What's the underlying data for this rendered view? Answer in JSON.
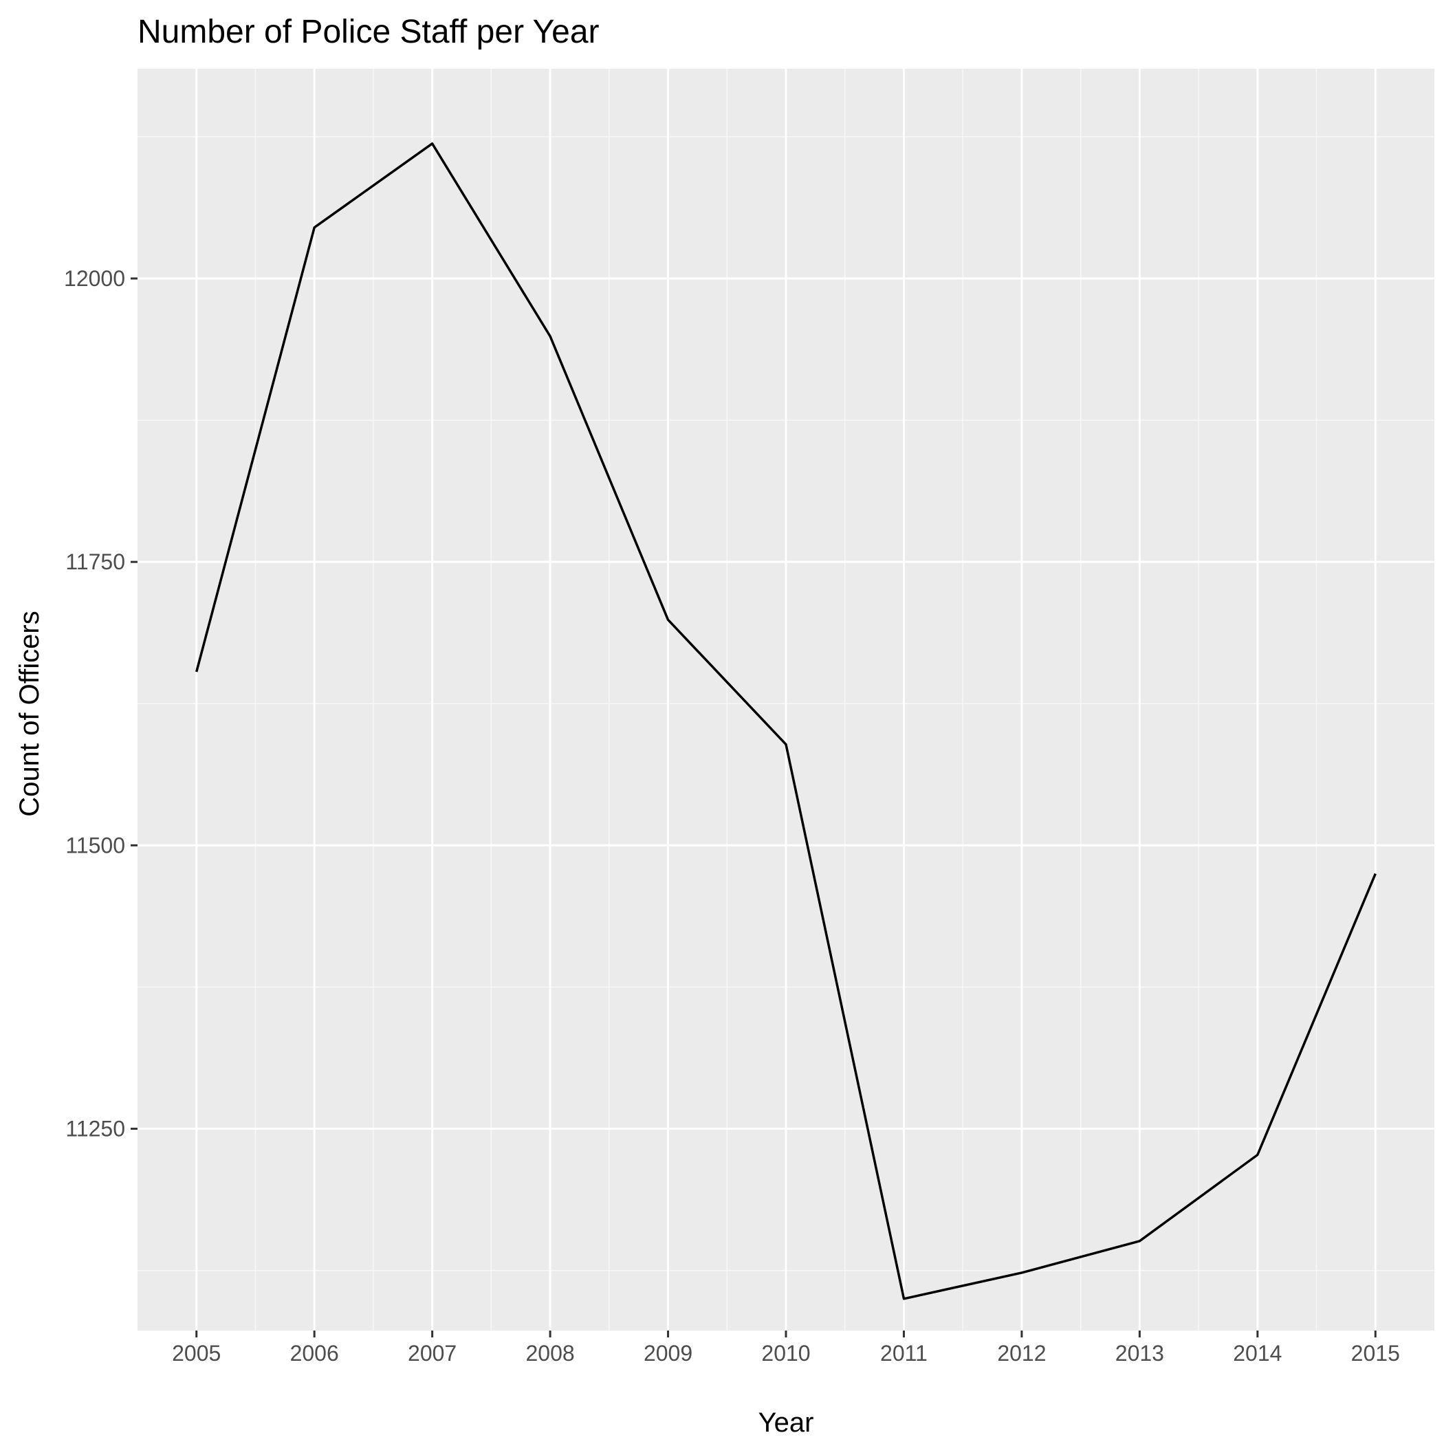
{
  "chart_data": {
    "type": "line",
    "title": "Number of Police Staff per Year",
    "xlabel": "Year",
    "ylabel": "Count of Officers",
    "x": [
      2005,
      2006,
      2007,
      2008,
      2009,
      2010,
      2011,
      2012,
      2013,
      2014,
      2015
    ],
    "series": [
      {
        "values": [
          11653,
          12045,
          12119,
          11949,
          11699,
          11589,
          11100,
          11123,
          11151,
          11227,
          11475
        ]
      }
    ],
    "xlim": [
      2004.5,
      2015.5
    ],
    "ylim": [
      11072,
      12185
    ],
    "x_ticks": [
      "2005",
      "2006",
      "2007",
      "2008",
      "2009",
      "2010",
      "2011",
      "2012",
      "2013",
      "2014",
      "2015"
    ],
    "y_ticks": [
      "11250",
      "11500",
      "11750",
      "12000"
    ],
    "grid": true,
    "legend": "none",
    "colors": {
      "panel_background": "#ebebeb",
      "grid_major": "#ffffff",
      "grid_minor": "#f7f7f7",
      "line": "#000000",
      "tick": "#333333"
    }
  }
}
